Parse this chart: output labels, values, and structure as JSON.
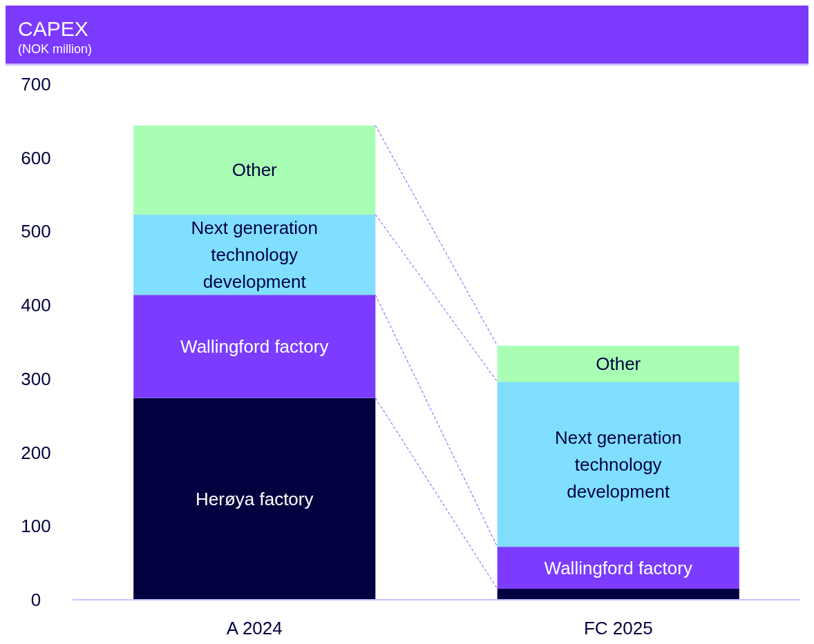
{
  "chart_data": {
    "type": "bar",
    "title": "CAPEX",
    "subtitle": "(NOK million)",
    "categories": [
      "A 2024",
      "FC 2025"
    ],
    "stacked": true,
    "grid": false,
    "ylim": [
      0,
      700
    ],
    "yticks": [
      0,
      100,
      200,
      300,
      400,
      500,
      600,
      700
    ],
    "series": [
      {
        "name": "Herøya factory",
        "color": "#02003f",
        "values": [
          274,
          15
        ]
      },
      {
        "name": "Wallingford factory",
        "color": "#7b3cff",
        "values": [
          140,
          57
        ]
      },
      {
        "name": "Next generation technology development",
        "color": "#80dfff",
        "values": [
          109,
          224
        ]
      },
      {
        "name": "Other",
        "color": "#a8ffb4",
        "values": [
          121,
          49
        ]
      }
    ]
  }
}
